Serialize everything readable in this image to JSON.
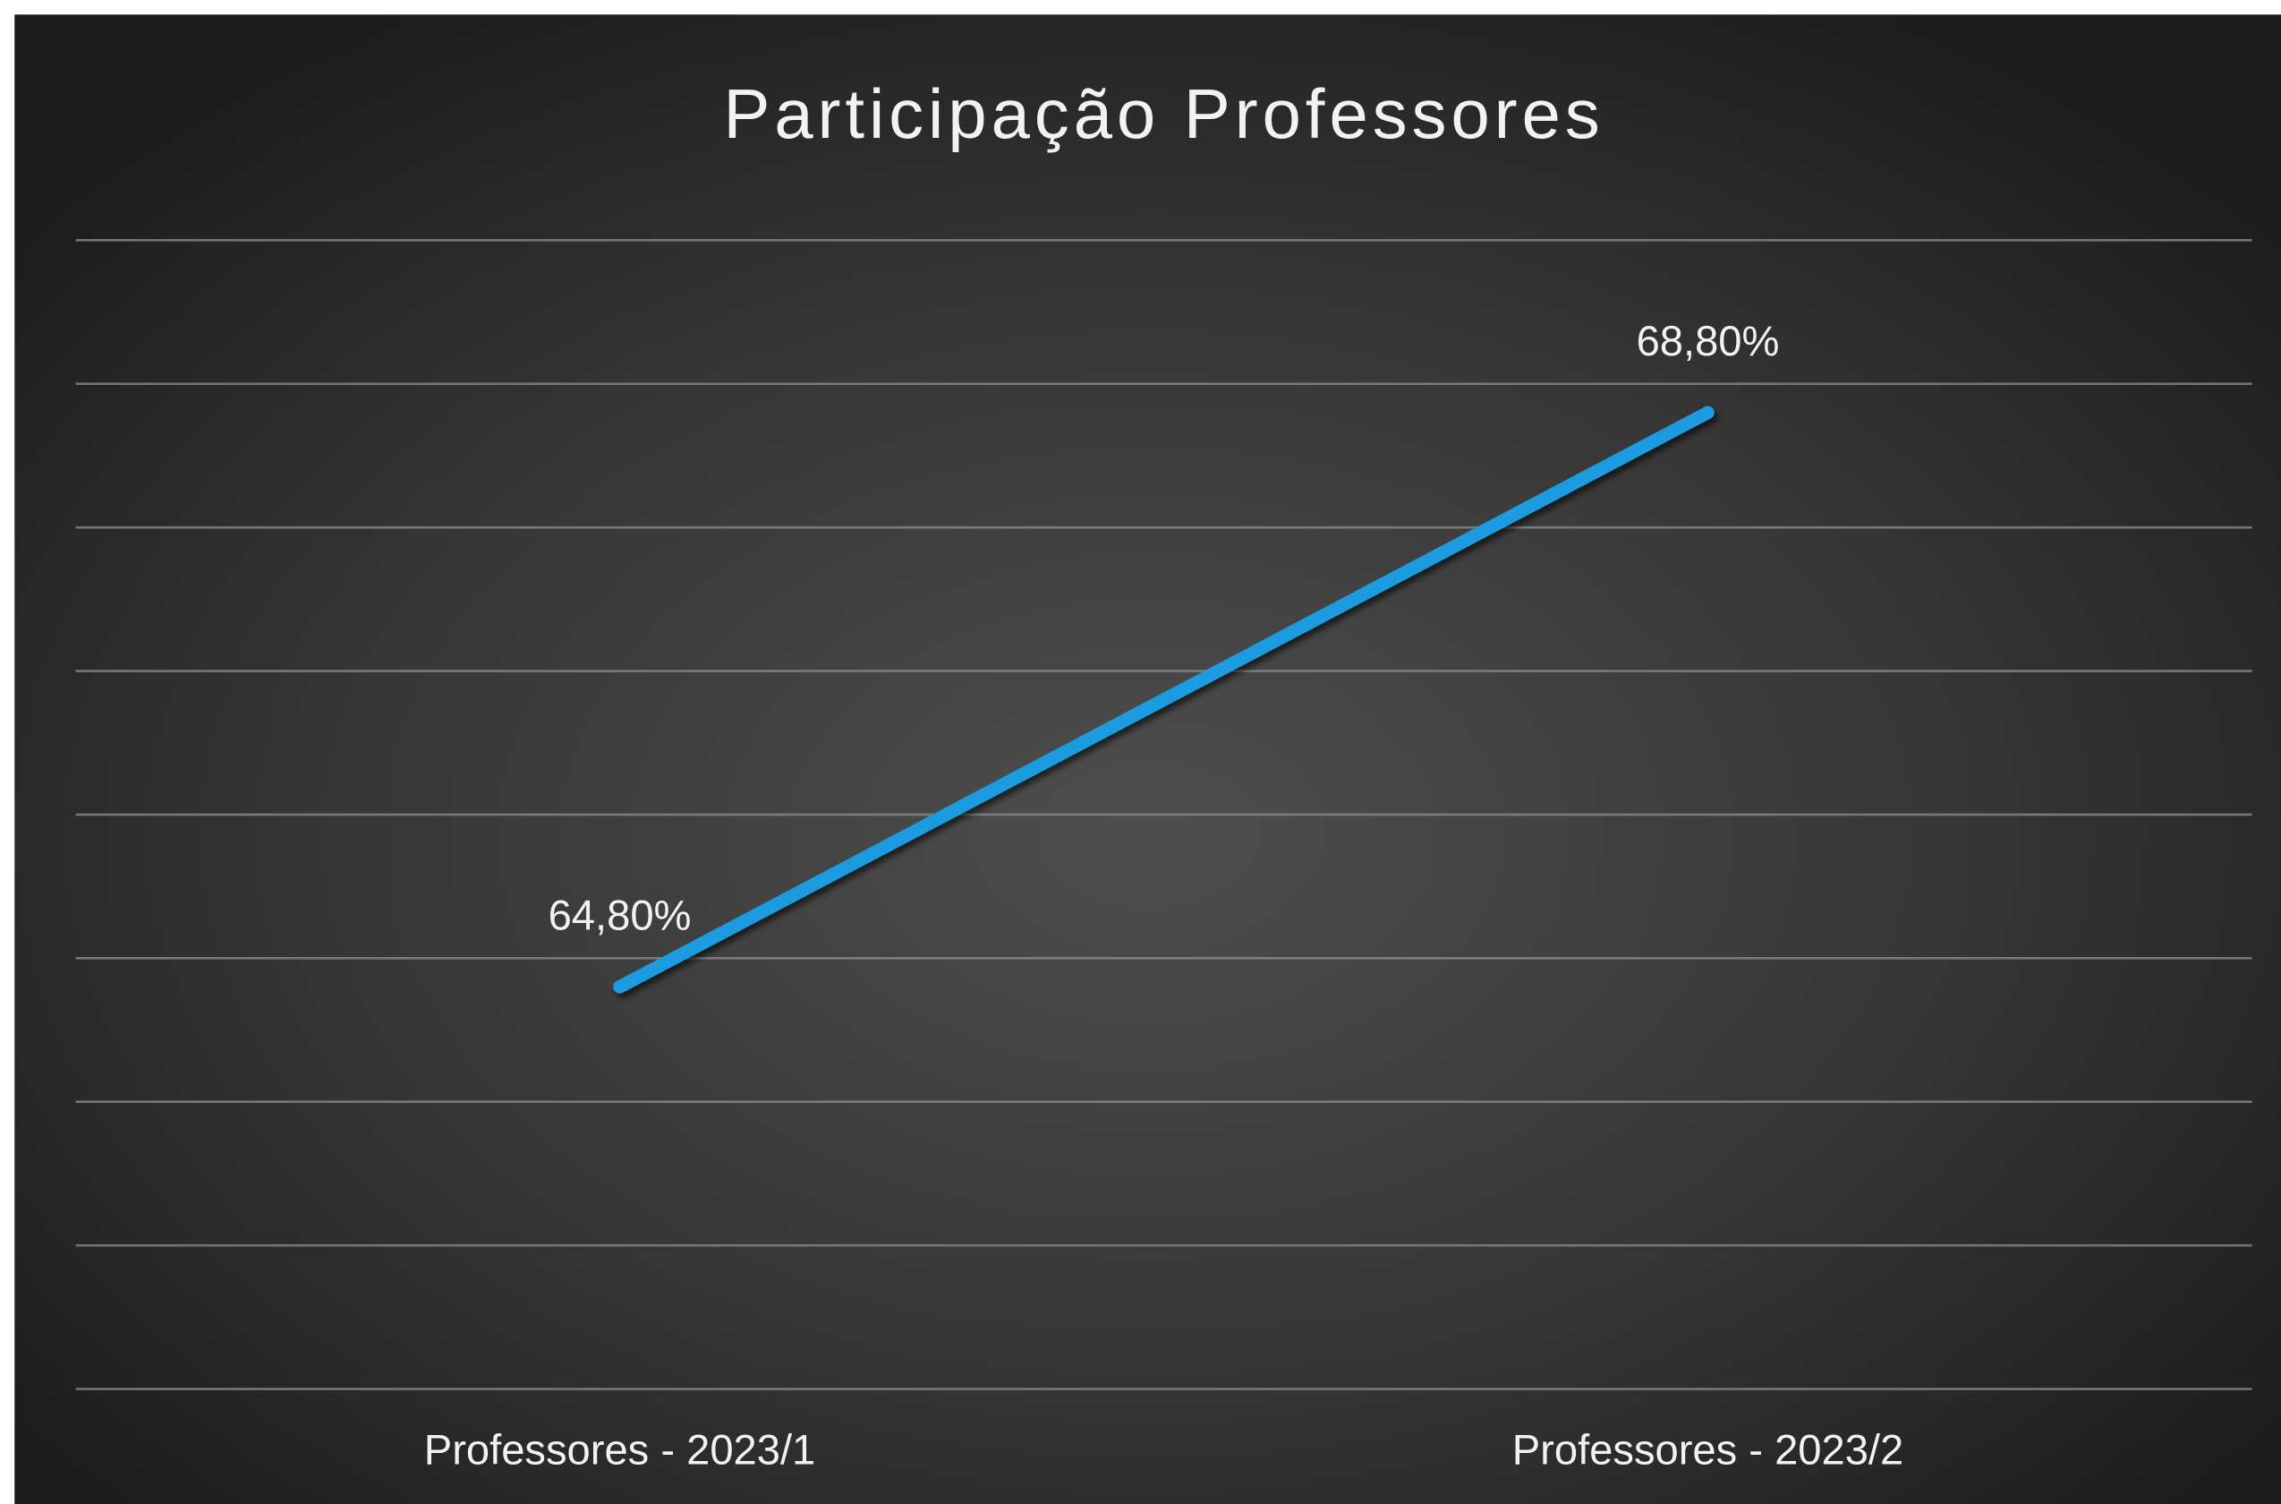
{
  "chart_data": {
    "type": "line",
    "title": "Participação Professores",
    "categories": [
      "Professores - 2023/1",
      "Professores - 2023/2"
    ],
    "series": [
      {
        "color": "#1e9be0",
        "values": [
          64.8,
          68.8
        ],
        "value_labels": [
          "64,80%",
          "68,80%"
        ]
      }
    ],
    "ylim": [
      62,
      70
    ],
    "yticks": [
      62,
      63,
      64,
      65,
      66,
      67,
      68,
      69,
      70
    ],
    "grid": true
  }
}
